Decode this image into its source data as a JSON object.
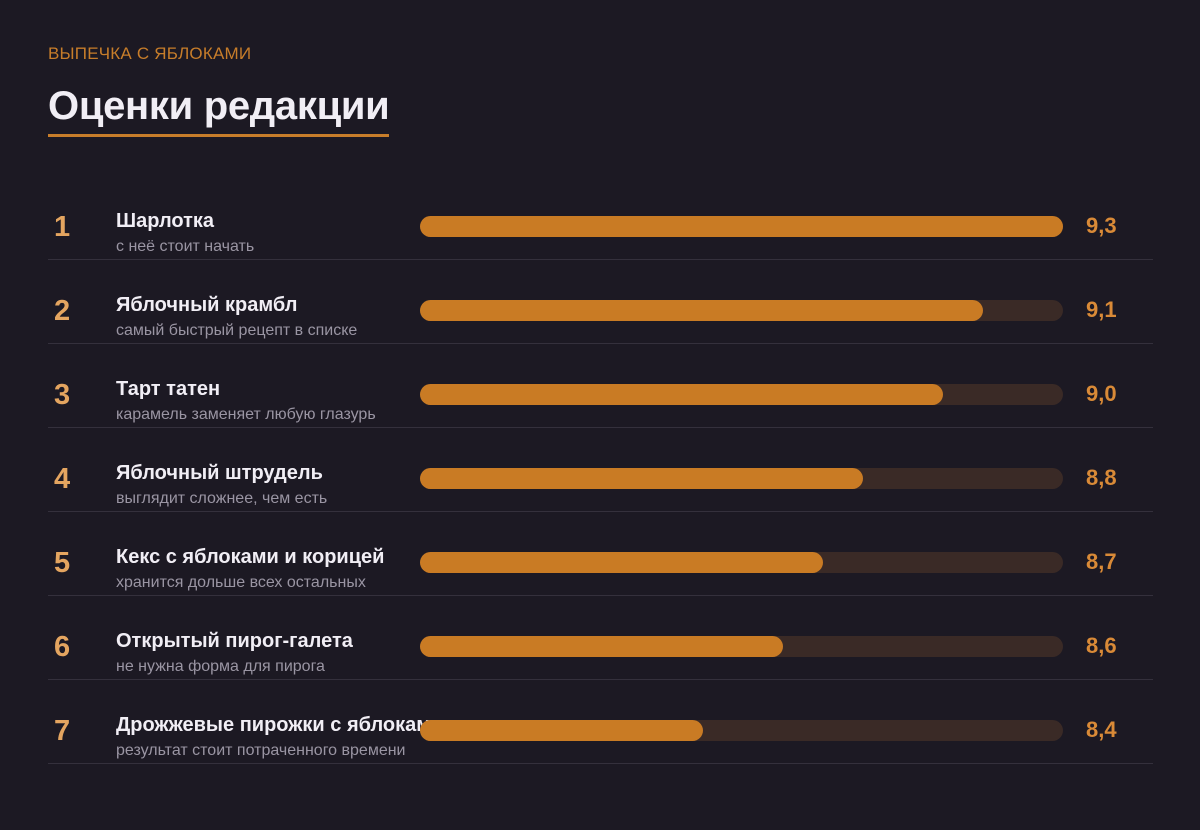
{
  "header": {
    "kicker": "ВЫПЕЧКА С ЯБЛОКАМИ",
    "title": "Оценки редакции"
  },
  "chart_data": {
    "type": "bar",
    "orientation": "horizontal",
    "scale_max": 9.3,
    "categories": [
      "Шарлотка",
      "Яблочный крамбл",
      "Тарт татен",
      "Яблочный штрудель",
      "Кекс с яблоками и корицей",
      "Открытый пирог-галета",
      "Дрожжевые пирожки с яблоками"
    ],
    "values": [
      9.3,
      9.1,
      9.0,
      8.8,
      8.7,
      8.6,
      8.4
    ],
    "items": [
      {
        "rank": "1",
        "name": "Шарлотка",
        "note": "с неё стоит начать",
        "value": 9.3,
        "value_label": "9,3"
      },
      {
        "rank": "2",
        "name": "Яблочный крамбл",
        "note": "самый быстрый рецепт в списке",
        "value": 9.1,
        "value_label": "9,1"
      },
      {
        "rank": "3",
        "name": "Тарт татен",
        "note": "карамель заменяет любую глазурь",
        "value": 9.0,
        "value_label": "9,0"
      },
      {
        "rank": "4",
        "name": "Яблочный штрудель",
        "note": "выглядит сложнее, чем есть",
        "value": 8.8,
        "value_label": "8,8"
      },
      {
        "rank": "5",
        "name": "Кекс с яблоками и корицей",
        "note": "хранится дольше всех остальных",
        "value": 8.7,
        "value_label": "8,7"
      },
      {
        "rank": "6",
        "name": "Открытый пирог-галета",
        "note": "не нужна форма для пирога",
        "value": 8.6,
        "value_label": "8,6"
      },
      {
        "rank": "7",
        "name": "Дрожжевые пирожки с яблоками",
        "note": "результат стоит потраченного времени",
        "value": 8.4,
        "value_label": "8,4"
      }
    ],
    "colors": {
      "accent": "#c97b24",
      "track": "#3a2a26",
      "rank": "#e4a560",
      "value": "#d98a37",
      "background": "#1c1923"
    }
  }
}
